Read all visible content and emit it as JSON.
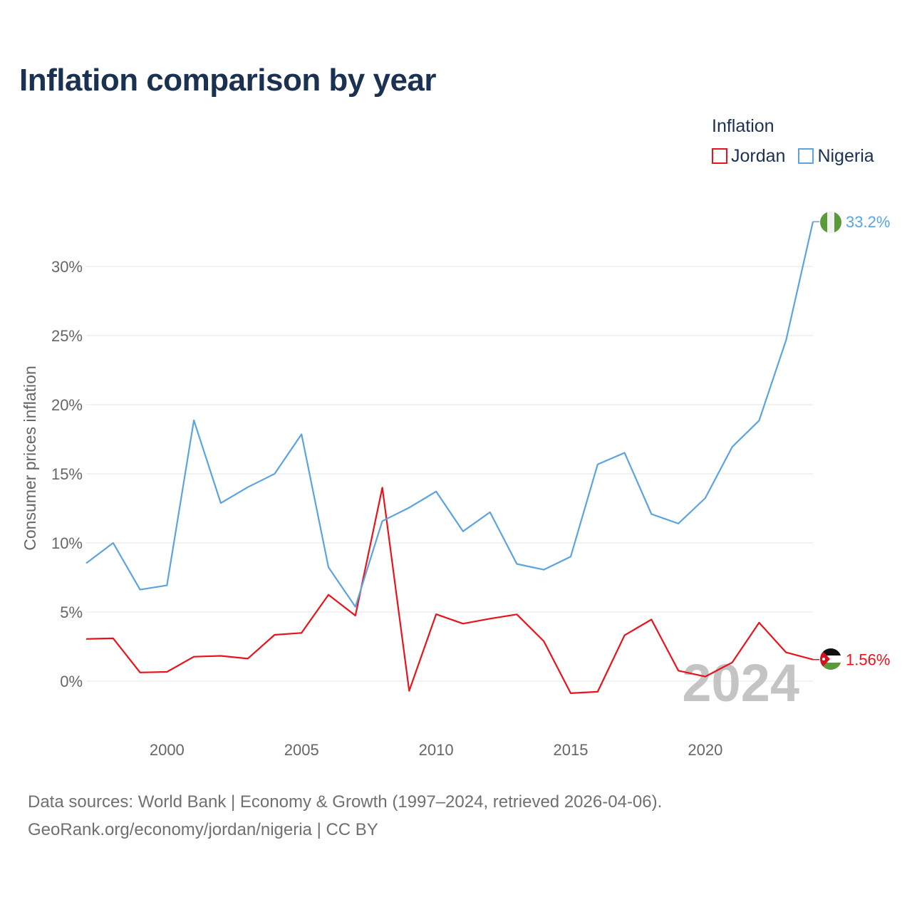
{
  "header": {
    "title": "Inflation comparison by year"
  },
  "legend": {
    "title": "Inflation"
  },
  "footer": {
    "source_line": "Data sources: World Bank | Economy & Growth (1997–2024, retrieved 2026-04-06).",
    "url_line": "GeoRank.org/economy/jordan/nigeria | CC BY"
  },
  "chart_data": {
    "type": "line",
    "title": "Inflation comparison by year",
    "xlabel": "",
    "ylabel": "Consumer prices inflation",
    "xlim": [
      1997,
      2024
    ],
    "ylim": [
      -3,
      35
    ],
    "y_ticks": [
      0,
      5,
      10,
      15,
      20,
      25,
      30
    ],
    "y_tick_labels": [
      "0%",
      "5%",
      "10%",
      "15%",
      "20%",
      "25%",
      "30%"
    ],
    "x_ticks": [
      2000,
      2005,
      2010,
      2015,
      2020
    ],
    "x_tick_labels": [
      "2000",
      "2005",
      "2010",
      "2015",
      "2020"
    ],
    "grid": true,
    "legend_position": "top-right",
    "current_year_label": "2024",
    "x": [
      1997,
      1998,
      1999,
      2000,
      2001,
      2002,
      2003,
      2004,
      2005,
      2006,
      2007,
      2008,
      2009,
      2010,
      2011,
      2012,
      2013,
      2014,
      2015,
      2016,
      2017,
      2018,
      2019,
      2020,
      2021,
      2022,
      2023,
      2024
    ],
    "series": [
      {
        "name": "Jordan",
        "color": "#e8131b",
        "end_label": "1.56%",
        "flag": "jordan-flag",
        "values": [
          3.05,
          3.1,
          0.63,
          0.67,
          1.77,
          1.83,
          1.63,
          3.35,
          3.49,
          6.25,
          4.74,
          14.0,
          -0.7,
          4.84,
          4.16,
          4.52,
          4.83,
          2.89,
          -0.87,
          -0.77,
          3.32,
          4.46,
          0.76,
          0.33,
          1.35,
          4.23,
          2.08,
          1.56
        ]
      },
      {
        "name": "Nigeria",
        "color": "#5ba4e0",
        "end_label": "33.2%",
        "flag": "nigeria-flag",
        "values": [
          8.53,
          10.0,
          6.62,
          6.93,
          18.87,
          12.88,
          14.03,
          15.0,
          17.86,
          8.24,
          5.38,
          11.58,
          12.55,
          13.72,
          10.84,
          12.22,
          8.48,
          8.06,
          9.01,
          15.68,
          16.52,
          12.09,
          11.4,
          13.25,
          16.95,
          18.85,
          24.66,
          33.24
        ]
      }
    ]
  }
}
